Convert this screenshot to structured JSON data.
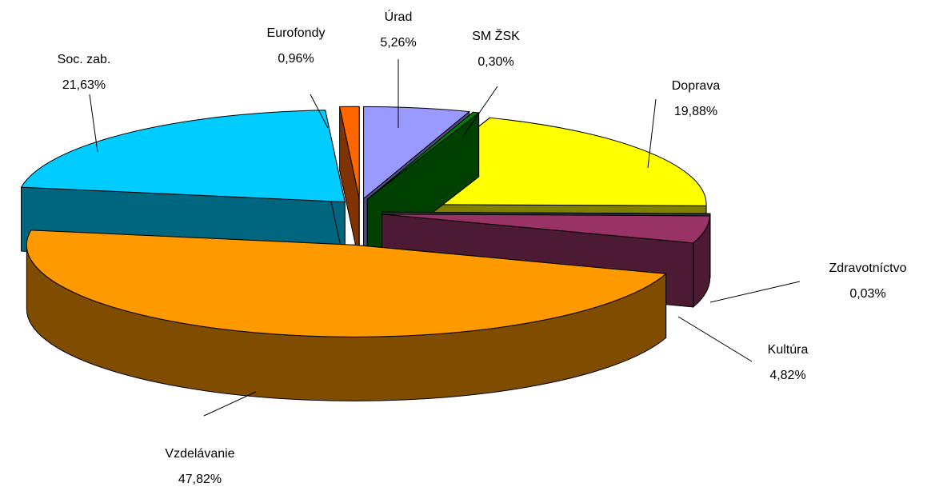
{
  "chart_data": {
    "type": "pie",
    "categories": [
      "Úrad",
      "SM ŽSK",
      "Doprava",
      "Zdravotníctvo",
      "Kultúra",
      "Vzdelávanie",
      "Soc. zab.",
      "Eurofondy"
    ],
    "values": [
      5.26,
      0.3,
      19.88,
      0.03,
      4.82,
      47.82,
      21.63,
      0.96
    ],
    "value_labels": [
      "5,26%",
      "0,30%",
      "19,88%",
      "0,03%",
      "4,82%",
      "47,82%",
      "21,63%",
      "0,96%"
    ],
    "colors": [
      "#9999ff",
      "#008000",
      "#ffff00",
      "#668080",
      "#993366",
      "#ff9900",
      "#00ccff",
      "#ff6600"
    ]
  }
}
